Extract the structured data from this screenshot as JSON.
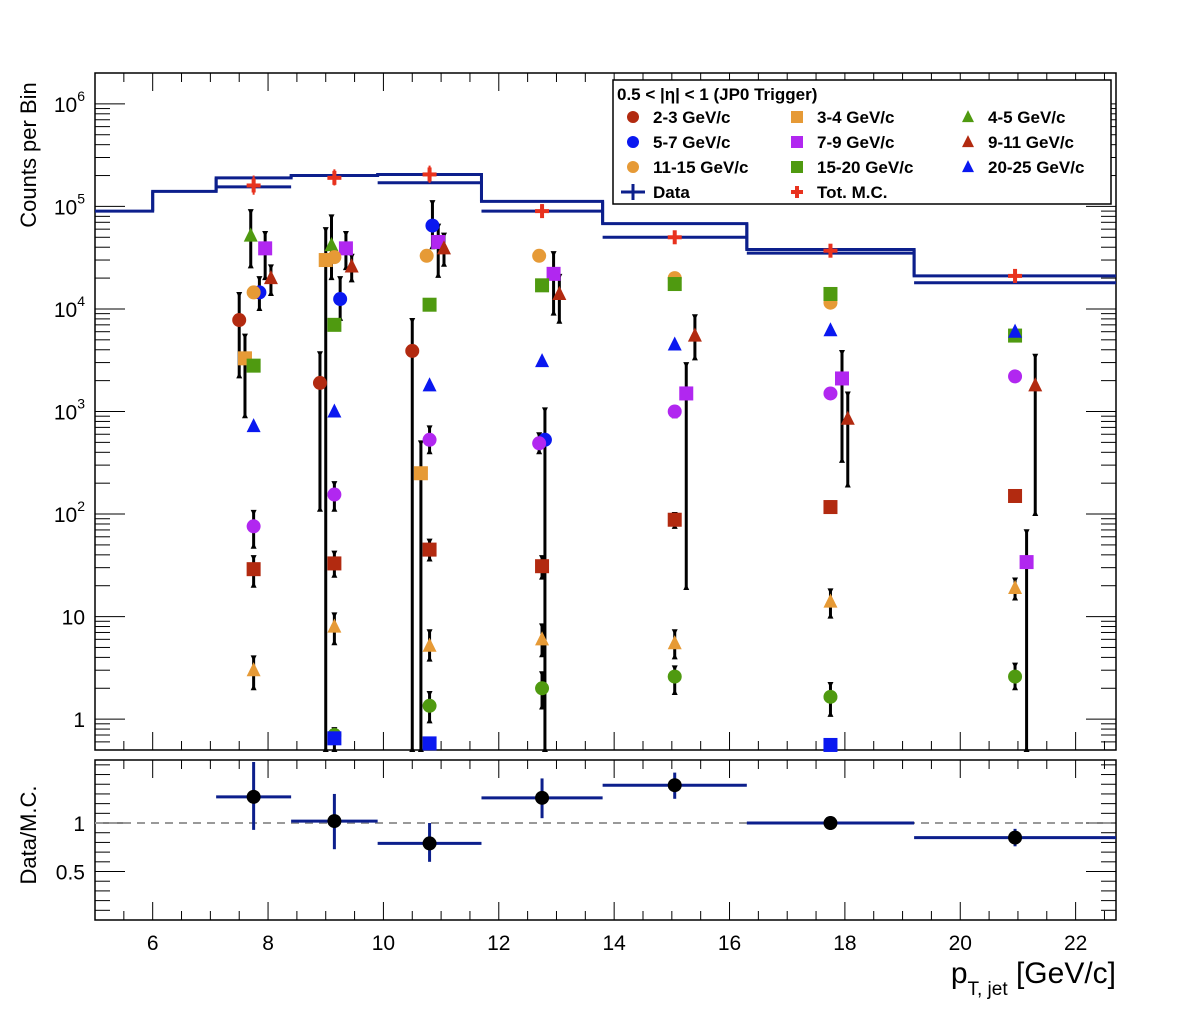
{
  "chart_data": [
    {
      "type": "scatter",
      "panel": "top",
      "ylabel": "Counts per Bin",
      "yscale": "log",
      "ylim": [
        0.5,
        2000000
      ],
      "xlim": [
        5,
        22.7
      ],
      "y_tick_labels": [
        {
          "v": 1,
          "base": "1",
          "exp": ""
        },
        {
          "v": 10,
          "base": "10",
          "exp": ""
        },
        {
          "v": 100,
          "base": "10",
          "exp": "2"
        },
        {
          "v": 1000,
          "base": "10",
          "exp": "3"
        },
        {
          "v": 10000,
          "base": "10",
          "exp": "4"
        },
        {
          "v": 100000,
          "base": "10",
          "exp": "5"
        },
        {
          "v": 1000000,
          "base": "10",
          "exp": "6"
        }
      ],
      "legend": {
        "title": "0.5 < |η| < 1 (JP0 Trigger)",
        "placement": "top-right",
        "entries": [
          {
            "label": "2-3 GeV/c",
            "color": "#b22a10",
            "marker": "circle"
          },
          {
            "label": "3-4 GeV/c",
            "color": "#e69a36",
            "marker": "square"
          },
          {
            "label": "4-5 GeV/c",
            "color": "#4f9a10",
            "marker": "triangle"
          },
          {
            "label": "5-7 GeV/c",
            "color": "#0a18f0",
            "marker": "circle"
          },
          {
            "label": "7-9 GeV/c",
            "color": "#b127f0",
            "marker": "square"
          },
          {
            "label": "9-11 GeV/c",
            "color": "#b22a10",
            "marker": "triangle"
          },
          {
            "label": "11-15 GeV/c",
            "color": "#e69a36",
            "marker": "circle"
          },
          {
            "label": "15-20 GeV/c",
            "color": "#4f9a10",
            "marker": "square"
          },
          {
            "label": "20-25 GeV/c",
            "color": "#0a18f0",
            "marker": "triangle"
          },
          {
            "label": "Data",
            "color": "#0c1f8c",
            "marker": "line"
          },
          {
            "label": "Tot. M.C.",
            "color": "#e8321e",
            "marker": "cross"
          }
        ]
      },
      "data_hist": [
        {
          "x0": 5,
          "x1": 6,
          "y": 90000
        },
        {
          "x0": 6,
          "x1": 7.1,
          "y": 140000
        },
        {
          "x0": 7.1,
          "x1": 8.4,
          "y": 190000
        },
        {
          "x0": 8.4,
          "x1": 9.9,
          "y": 200000
        },
        {
          "x0": 9.9,
          "x1": 11.7,
          "y": 205000
        },
        {
          "x0": 11.7,
          "x1": 13.8,
          "y": 112000
        },
        {
          "x0": 13.8,
          "x1": 16.3,
          "y": 68000
        },
        {
          "x0": 16.3,
          "x1": 19.2,
          "y": 38000
        },
        {
          "x0": 19.2,
          "x1": 22.7,
          "y": 21000
        }
      ],
      "data_hist_lower_edge": [
        {
          "x0": 7.1,
          "x1": 8.4,
          "y": 155000
        },
        {
          "x0": 9.9,
          "x1": 11.7,
          "y": 170000
        },
        {
          "x0": 11.7,
          "x1": 13.8,
          "y": 90000
        },
        {
          "x0": 13.8,
          "x1": 16.3,
          "y": 50000
        },
        {
          "x0": 16.3,
          "x1": 19.2,
          "y": 35000
        },
        {
          "x0": 19.2,
          "x1": 22.7,
          "y": 18000
        }
      ],
      "tot_mc": [
        {
          "x": 7.75,
          "y": 160000,
          "hi": 200000,
          "lo": 130000
        },
        {
          "x": 9.15,
          "y": 190000,
          "hi": 230000,
          "lo": 160000
        },
        {
          "x": 10.8,
          "y": 205000,
          "hi": 250000,
          "lo": 170000
        },
        {
          "x": 12.75,
          "y": 90000,
          "hi": 105000,
          "lo": 78000
        },
        {
          "x": 15.05,
          "y": 50000,
          "hi": 57000,
          "lo": 44000
        },
        {
          "x": 17.75,
          "y": 37000,
          "hi": 41000,
          "lo": 33000
        },
        {
          "x": 20.95,
          "y": 21000,
          "hi": 24000,
          "lo": 19000
        }
      ],
      "series": [
        {
          "name": "2-3 GeV/c",
          "points": [
            {
              "x": 7.5,
              "y": 7800,
              "lo": 2200,
              "hi": 14000
            },
            {
              "x": 8.9,
              "y": 1900,
              "lo": 110,
              "hi": 3700
            },
            {
              "x": 10.5,
              "y": 3900,
              "lo": 0.5,
              "hi": 7800
            }
          ]
        },
        {
          "name": "3-4 GeV/c",
          "points": [
            {
              "x": 7.6,
              "y": 3300,
              "lo": 900,
              "hi": 5500
            },
            {
              "x": 9.0,
              "y": 30000,
              "lo": 0.5,
              "hi": 60000
            },
            {
              "x": 10.65,
              "y": 250,
              "lo": 0.5,
              "hi": 500
            }
          ]
        },
        {
          "name": "4-5 GeV/c",
          "points": [
            {
              "x": 7.7,
              "y": 52000,
              "lo": 26000,
              "hi": 90000
            },
            {
              "x": 9.1,
              "y": 42000,
              "lo": 20000,
              "hi": 80000
            }
          ]
        },
        {
          "name": "5-7 GeV/c",
          "points": [
            {
              "x": 7.85,
              "y": 14500,
              "lo": 10000,
              "hi": 20000
            },
            {
              "x": 9.25,
              "y": 12500,
              "lo": 8000,
              "hi": 20000
            },
            {
              "x": 10.85,
              "y": 65000,
              "lo": 40000,
              "hi": 110000
            },
            {
              "x": 12.8,
              "y": 530,
              "lo": 0.5,
              "hi": 1050
            }
          ]
        },
        {
          "name": "7-9 GeV/c",
          "points": [
            {
              "x": 7.95,
              "y": 39000,
              "lo": 20000,
              "hi": 55000
            },
            {
              "x": 9.35,
              "y": 39000,
              "lo": 25000,
              "hi": 55000
            },
            {
              "x": 10.95,
              "y": 45000,
              "lo": 21000,
              "hi": 65000
            },
            {
              "x": 12.95,
              "y": 22000,
              "lo": 9000,
              "hi": 35000
            },
            {
              "x": 15.25,
              "y": 1500,
              "lo": 19,
              "hi": 2900
            },
            {
              "x": 17.95,
              "y": 2100,
              "lo": 330,
              "hi": 3800
            },
            {
              "x": 21.15,
              "y": 34,
              "lo": 0.5,
              "hi": 68
            }
          ]
        },
        {
          "name": "9-11 GeV/c",
          "points": [
            {
              "x": 8.05,
              "y": 20000,
              "lo": 14000,
              "hi": 26000
            },
            {
              "x": 9.45,
              "y": 26000,
              "lo": 19000,
              "hi": 33000
            },
            {
              "x": 11.05,
              "y": 39000,
              "lo": 27000,
              "hi": 53000
            },
            {
              "x": 13.05,
              "y": 14000,
              "lo": 7500,
              "hi": 21000
            },
            {
              "x": 15.4,
              "y": 5500,
              "lo": 3300,
              "hi": 8500
            },
            {
              "x": 18.05,
              "y": 850,
              "lo": 190,
              "hi": 1500
            },
            {
              "x": 21.3,
              "y": 1800,
              "lo": 100,
              "hi": 3500
            }
          ]
        },
        {
          "name": "11-15 GeV/c",
          "points": [
            {
              "x": 7.75,
              "y": 14500,
              "lo": 14000,
              "hi": 15000
            },
            {
              "x": 9.15,
              "y": 32000,
              "lo": 31000,
              "hi": 33000
            },
            {
              "x": 10.75,
              "y": 33000,
              "lo": 32000,
              "hi": 34000
            },
            {
              "x": 12.7,
              "y": 33000,
              "lo": 32000,
              "hi": 34000
            },
            {
              "x": 15.05,
              "y": 20000,
              "lo": 19000,
              "hi": 21000
            },
            {
              "x": 17.75,
              "y": 11500,
              "lo": 11000,
              "hi": 12000
            }
          ]
        },
        {
          "name": "15-20 GeV/c",
          "points": [
            {
              "x": 7.75,
              "y": 2800,
              "lo": 2600,
              "hi": 3000
            },
            {
              "x": 9.15,
              "y": 7000,
              "lo": 6500,
              "hi": 7500
            },
            {
              "x": 10.8,
              "y": 11000,
              "lo": 10500,
              "hi": 11500
            },
            {
              "x": 12.75,
              "y": 17000,
              "lo": 16500,
              "hi": 17500
            },
            {
              "x": 15.05,
              "y": 17500,
              "lo": 17000,
              "hi": 18000
            },
            {
              "x": 17.75,
              "y": 14000,
              "lo": 13500,
              "hi": 14500
            },
            {
              "x": 20.95,
              "y": 5500,
              "lo": 5000,
              "hi": 6000
            }
          ]
        },
        {
          "name": "20-25 GeV/c",
          "points": [
            {
              "x": 7.75,
              "y": 720,
              "lo": 700,
              "hi": 740
            },
            {
              "x": 9.15,
              "y": 1000,
              "lo": 970,
              "hi": 1030
            },
            {
              "x": 10.8,
              "y": 1800,
              "lo": 1750,
              "hi": 1850
            },
            {
              "x": 12.75,
              "y": 3100,
              "lo": 3000,
              "hi": 3200
            },
            {
              "x": 15.05,
              "y": 4500,
              "lo": 4400,
              "hi": 4600
            },
            {
              "x": 17.75,
              "y": 6200,
              "lo": 6000,
              "hi": 6400
            },
            {
              "x": 20.95,
              "y": 6000,
              "lo": 5800,
              "hi": 6200
            }
          ]
        }
      ],
      "low_markers": [
        {
          "x": 7.75,
          "y": 76,
          "lo": 48,
          "hi": 105,
          "color": "#b127f0",
          "marker": "circle"
        },
        {
          "x": 9.15,
          "y": 155,
          "lo": 110,
          "hi": 200,
          "color": "#b127f0",
          "marker": "circle"
        },
        {
          "x": 10.8,
          "y": 530,
          "lo": 400,
          "hi": 700,
          "color": "#b127f0",
          "marker": "circle"
        },
        {
          "x": 12.7,
          "y": 490,
          "lo": 400,
          "hi": 600,
          "color": "#b127f0",
          "marker": "circle"
        },
        {
          "x": 15.05,
          "y": 1000,
          "lo": 900,
          "hi": 1100,
          "color": "#b127f0",
          "marker": "circle"
        },
        {
          "x": 17.75,
          "y": 1500,
          "lo": 1400,
          "hi": 1600,
          "color": "#b127f0",
          "marker": "circle"
        },
        {
          "x": 20.95,
          "y": 2200,
          "lo": 2100,
          "hi": 2300,
          "color": "#b127f0",
          "marker": "circle"
        },
        {
          "x": 7.75,
          "y": 29,
          "lo": 20,
          "hi": 38,
          "color": "#b22a10",
          "marker": "square"
        },
        {
          "x": 9.15,
          "y": 33,
          "lo": 25,
          "hi": 42,
          "color": "#b22a10",
          "marker": "square"
        },
        {
          "x": 10.8,
          "y": 45,
          "lo": 36,
          "hi": 55,
          "color": "#b22a10",
          "marker": "square"
        },
        {
          "x": 12.75,
          "y": 31,
          "lo": 24,
          "hi": 38,
          "color": "#b22a10",
          "marker": "square"
        },
        {
          "x": 15.05,
          "y": 88,
          "lo": 75,
          "hi": 100,
          "color": "#b22a10",
          "marker": "square"
        },
        {
          "x": 17.75,
          "y": 117,
          "lo": 105,
          "hi": 130,
          "color": "#b22a10",
          "marker": "square"
        },
        {
          "x": 20.95,
          "y": 150,
          "lo": 140,
          "hi": 160,
          "color": "#b22a10",
          "marker": "square"
        },
        {
          "x": 7.75,
          "y": 3,
          "lo": 2,
          "hi": 4,
          "color": "#e69a36",
          "marker": "triangle"
        },
        {
          "x": 9.15,
          "y": 8,
          "lo": 5.5,
          "hi": 10.5,
          "color": "#e69a36",
          "marker": "triangle"
        },
        {
          "x": 10.8,
          "y": 5.2,
          "lo": 3.8,
          "hi": 7.2,
          "color": "#e69a36",
          "marker": "triangle"
        },
        {
          "x": 12.75,
          "y": 6,
          "lo": 4.2,
          "hi": 8.2,
          "color": "#e69a36",
          "marker": "triangle"
        },
        {
          "x": 15.05,
          "y": 5.5,
          "lo": 4,
          "hi": 7.2,
          "color": "#e69a36",
          "marker": "triangle"
        },
        {
          "x": 17.75,
          "y": 14,
          "lo": 10,
          "hi": 18,
          "color": "#e69a36",
          "marker": "triangle"
        },
        {
          "x": 20.95,
          "y": 19,
          "lo": 15,
          "hi": 23,
          "color": "#e69a36",
          "marker": "triangle"
        },
        {
          "x": 9.15,
          "y": 0.7,
          "lo": 0.5,
          "hi": 0.8,
          "color": "#4f9a10",
          "marker": "circle"
        },
        {
          "x": 10.8,
          "y": 1.35,
          "lo": 0.95,
          "hi": 1.8,
          "color": "#4f9a10",
          "marker": "circle"
        },
        {
          "x": 12.75,
          "y": 2,
          "lo": 1.3,
          "hi": 2.8,
          "color": "#4f9a10",
          "marker": "circle"
        },
        {
          "x": 15.05,
          "y": 2.6,
          "lo": 1.8,
          "hi": 3.2,
          "color": "#4f9a10",
          "marker": "circle"
        },
        {
          "x": 17.75,
          "y": 1.65,
          "lo": 1.1,
          "hi": 2.2,
          "color": "#4f9a10",
          "marker": "circle"
        },
        {
          "x": 20.95,
          "y": 2.6,
          "lo": 2,
          "hi": 3.4,
          "color": "#4f9a10",
          "marker": "circle"
        },
        {
          "x": 9.15,
          "y": 0.65,
          "lo": 0.65,
          "hi": 0.65,
          "color": "#0a18f0",
          "marker": "square"
        },
        {
          "x": 10.8,
          "y": 0.58,
          "lo": 0.58,
          "hi": 0.58,
          "color": "#0a18f0",
          "marker": "square"
        },
        {
          "x": 17.75,
          "y": 0.56,
          "lo": 0.56,
          "hi": 0.56,
          "color": "#0a18f0",
          "marker": "square"
        }
      ]
    },
    {
      "type": "scatter",
      "panel": "bottom",
      "ylabel": "Data/M.C.",
      "xlabel_main": "p",
      "xlabel_sub": "T, jet",
      "xlabel_unit": " [GeV/c]",
      "xlim": [
        5,
        22.7
      ],
      "ylim": [
        0,
        1.65
      ],
      "x_ticks": [
        "6",
        "8",
        "10",
        "12",
        "14",
        "16",
        "18",
        "20",
        "22"
      ],
      "y_ticks": [
        "0.5",
        "1"
      ],
      "reference_line": 1,
      "points": [
        {
          "x": 7.75,
          "y": 1.27,
          "xlo": 7.1,
          "xhi": 8.4,
          "ylo": 0.93,
          "yhi": 1.63
        },
        {
          "x": 9.15,
          "y": 1.02,
          "xlo": 8.4,
          "xhi": 9.9,
          "ylo": 0.73,
          "yhi": 1.3
        },
        {
          "x": 10.8,
          "y": 0.79,
          "xlo": 9.9,
          "xhi": 11.7,
          "ylo": 0.6,
          "yhi": 1.0
        },
        {
          "x": 12.75,
          "y": 1.26,
          "xlo": 11.7,
          "xhi": 13.8,
          "ylo": 1.05,
          "yhi": 1.46
        },
        {
          "x": 15.05,
          "y": 1.39,
          "xlo": 13.8,
          "xhi": 16.3,
          "ylo": 1.25,
          "yhi": 1.52
        },
        {
          "x": 17.75,
          "y": 1.0,
          "xlo": 16.3,
          "xhi": 19.2,
          "ylo": 0.93,
          "yhi": 1.07
        },
        {
          "x": 20.95,
          "y": 0.85,
          "xlo": 19.2,
          "xhi": 22.7,
          "ylo": 0.76,
          "yhi": 0.94
        }
      ]
    }
  ]
}
